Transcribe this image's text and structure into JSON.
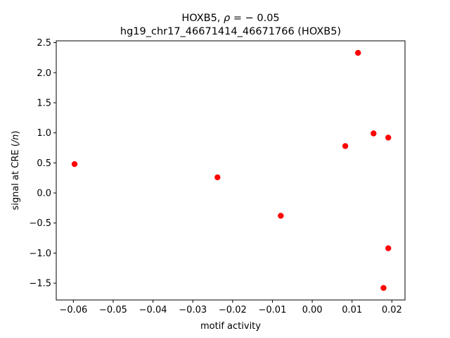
{
  "chart_data": {
    "type": "scatter",
    "title_line1": "HOXB5, ρ = − 0.05",
    "title_line2": "hg19_chr17_46671414_46671766 (HOXB5)",
    "xlabel": "motif activity",
    "ylabel": "signal at CRE (/n)",
    "xlim": [
      -0.0643,
      0.0233
    ],
    "ylim": [
      -1.78,
      2.53
    ],
    "xticks": [
      -0.06,
      -0.05,
      -0.04,
      -0.03,
      -0.02,
      -0.01,
      0.0,
      0.01,
      0.02
    ],
    "xtick_labels": [
      "−0.06",
      "−0.05",
      "−0.04",
      "−0.03",
      "−0.02",
      "−0.01",
      "0.00",
      "0.01",
      "0.02"
    ],
    "yticks": [
      -1.5,
      -1.0,
      -0.5,
      0.0,
      0.5,
      1.0,
      1.5,
      2.0,
      2.5
    ],
    "ytick_labels": [
      "−1.5",
      "−1.0",
      "−0.5",
      "0.0",
      "0.5",
      "1.0",
      "1.5",
      "2.0",
      "2.5"
    ],
    "grid": false,
    "marker_color": "#ff0000",
    "points": [
      {
        "x": -0.0597,
        "y": 0.48
      },
      {
        "x": -0.0238,
        "y": 0.26
      },
      {
        "x": -0.0079,
        "y": -0.38
      },
      {
        "x": 0.0083,
        "y": 0.78
      },
      {
        "x": 0.0115,
        "y": 2.33
      },
      {
        "x": 0.0154,
        "y": 0.99
      },
      {
        "x": 0.0191,
        "y": 0.92
      },
      {
        "x": 0.0191,
        "y": -0.92
      },
      {
        "x": 0.0179,
        "y": -1.58
      }
    ]
  }
}
